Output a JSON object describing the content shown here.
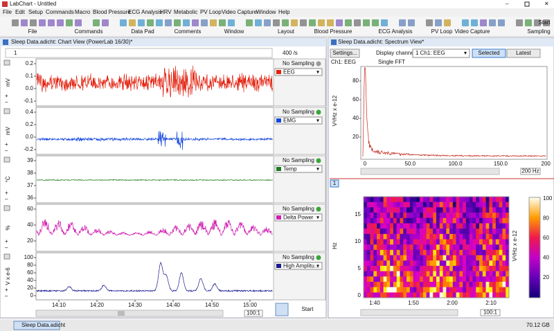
{
  "window_title": "LabChart - Untitled",
  "menu": [
    "File",
    "Edit",
    "Setup",
    "Commands",
    "Macro",
    "Blood Pressure",
    "ECG Analysis",
    "HRV",
    "Metabolic",
    "PV Loop",
    "Video Capture",
    "Window",
    "Help"
  ],
  "toolbar_groups": [
    "File",
    "Commands",
    "Data Pad",
    "Comments",
    "Window",
    "Layout",
    "Blood Pressure",
    "ECG Analysis",
    "PV Loop",
    "Video Capture",
    "Sampling"
  ],
  "toolbar_start": "Start",
  "chart_view": {
    "title": "Sleep Data.adicht: Chart View (PowerLab 16/30)*",
    "page": "1",
    "rate": "400 /s",
    "channels": [
      {
        "unit": "mV",
        "ticks": [
          "0.2",
          "0.1",
          "0.0",
          "-0.1"
        ],
        "status": "No Sampling",
        "name": "EEG",
        "color": "#e3200e"
      },
      {
        "unit": "mV",
        "ticks": [
          "0.4",
          "0.2",
          "0.0",
          "-0.2"
        ],
        "status": "No Sampling",
        "name": "EMG",
        "color": "#1446e0"
      },
      {
        "unit": "°C",
        "ticks": [
          "39",
          "38",
          "37",
          "36"
        ],
        "status": "No Sampling",
        "name": "Temp",
        "color": "#1f7a1f"
      },
      {
        "unit": "%",
        "ticks": [
          "60",
          "40",
          "20"
        ],
        "status": "No Sampling",
        "name": "Delta Power",
        "color": "#d020b0"
      },
      {
        "unit": "V x e-6",
        "ticks": [
          "100",
          "80",
          "60",
          "40",
          "20",
          "0"
        ],
        "status": "No Sampling",
        "name": "High Amplitu...",
        "color": "#1a1a90"
      }
    ],
    "time_labels": [
      "14:10",
      "14:20",
      "14:30",
      "14:40",
      "14:50",
      "15:00"
    ],
    "zoom": "100:1",
    "start": "Start"
  },
  "spectrum_view": {
    "title": "Sleep Data.adicht: Spectrum View*",
    "settings": "Settings...",
    "display_label": "Display channels:",
    "display_value": "1 Ch1: EEG",
    "selected": "Selected",
    "latest": "Latest",
    "channel": "Ch1: EEG",
    "mode": "Single FFT",
    "spectrum": {
      "y_label": "V²/Hz x e-12",
      "yticks": [
        "80",
        "60",
        "40",
        "20"
      ],
      "xticks": [
        "0",
        "50.0",
        "100.0",
        "150.0",
        "200"
      ],
      "range": "200 Hz"
    },
    "tab": "1",
    "spectrogram": {
      "y_label": "Hz",
      "yticks": [
        "15",
        "10",
        "5",
        "0"
      ],
      "xticks": [
        "1:40",
        "1:50",
        "2:00",
        "2:10"
      ],
      "colorbar_label": "V²/Hz x e-12",
      "colorbar_ticks": [
        "100",
        "80",
        "60",
        "40",
        "20"
      ],
      "zoom": "100:1"
    }
  },
  "status": {
    "file": "Sleep Data.adicht",
    "disk": "70.12 GB"
  }
}
